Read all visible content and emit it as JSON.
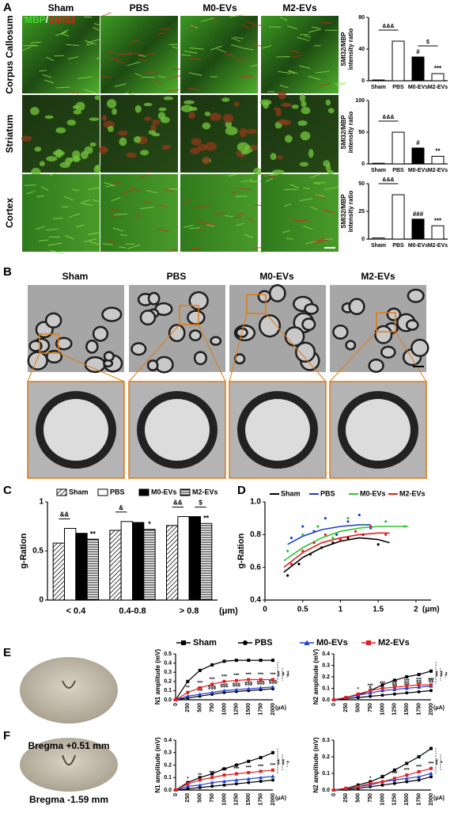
{
  "panels": [
    "A",
    "B",
    "C",
    "D",
    "E",
    "F"
  ],
  "panel_a": {
    "stain": {
      "mbp": "MBP",
      "sep": "/",
      "smi": "SMI32"
    },
    "columns": [
      "Sham",
      "PBS",
      "M0-EVs",
      "M2-EVs"
    ],
    "rows": [
      "Corpus Callosum",
      "Striatum",
      "Cortex"
    ]
  },
  "panel_b": {
    "columns": [
      "Sham",
      "PBS",
      "M0-EVs",
      "M2-EVs"
    ]
  },
  "panel_e": {
    "bregma": "Bregma +0.51 mm"
  },
  "panel_f": {
    "bregma": "Bregma -1.59 mm"
  },
  "chart_data": [
    {
      "type": "bar",
      "ylabel": [
        "SMI32/MBP",
        "intensity ratio"
      ],
      "categories": [
        "Sham",
        "PBS",
        "M0-EVs",
        "M2-EVs"
      ],
      "values": [
        1,
        50,
        30,
        9
      ],
      "colors": [
        "#ffffff",
        "#ffffff",
        "#000000",
        "#ffffff"
      ],
      "ylim": [
        0,
        80
      ],
      "yticks": [
        0,
        40,
        80
      ],
      "significance": [
        null,
        null,
        "#",
        "***"
      ],
      "brackets": [
        {
          "span": [
            "Sham",
            "PBS"
          ],
          "label": "&&&"
        },
        {
          "span": [
            "M0-EVs",
            "M2-EVs"
          ],
          "label": "$"
        }
      ]
    },
    {
      "type": "bar",
      "ylabel": [
        "SMI32/MBP",
        "intensity ratio"
      ],
      "categories": [
        "Sham",
        "PBS",
        "M0-EVs",
        "M2-EVs"
      ],
      "values": [
        1,
        50,
        25,
        12
      ],
      "colors": [
        "#ffffff",
        "#ffffff",
        "#000000",
        "#ffffff"
      ],
      "ylim": [
        0,
        100
      ],
      "yticks": [
        0,
        50,
        100
      ],
      "significance": [
        null,
        null,
        "#",
        "**"
      ],
      "brackets": [
        {
          "span": [
            "Sham",
            "PBS"
          ],
          "label": "&&&"
        }
      ]
    },
    {
      "type": "bar",
      "ylabel": [
        "SMI32/MBP",
        "intensity ratio"
      ],
      "categories": [
        "Sham",
        "PBS",
        "M0-EVs",
        "M2-EVs"
      ],
      "values": [
        1,
        40,
        18,
        12
      ],
      "colors": [
        "#ffffff",
        "#ffffff",
        "#000000",
        "#ffffff"
      ],
      "ylim": [
        0,
        50
      ],
      "yticks": [
        0,
        25,
        50
      ],
      "significance": [
        null,
        null,
        "###",
        "***"
      ],
      "brackets": [
        {
          "span": [
            "Sham",
            "PBS"
          ],
          "label": "&&&"
        }
      ]
    },
    {
      "type": "grouped_bar",
      "ylabel": "g-Ration",
      "x_unit": "(μm)",
      "categories": [
        "< 0.4",
        "0.4-0.8",
        "> 0.8"
      ],
      "ylim": [
        0,
        1
      ],
      "yticks": [
        0,
        0.5,
        1
      ],
      "series": [
        {
          "name": "Sham",
          "color": "#ffffff",
          "pattern": "diagonal",
          "values": [
            0.58,
            0.71,
            0.76
          ]
        },
        {
          "name": "PBS",
          "color": "#ffffff",
          "values": [
            0.73,
            0.8,
            0.85
          ]
        },
        {
          "name": "M0-EVs",
          "color": "#000000",
          "values": [
            0.68,
            0.79,
            0.85
          ]
        },
        {
          "name": "M2-EVs",
          "color": "#ffffff",
          "pattern": "horizontal",
          "values": [
            0.62,
            0.72,
            0.78
          ],
          "significance": [
            "**",
            "*",
            "**"
          ]
        }
      ],
      "brackets": [
        {
          "category": "< 0.4",
          "span": [
            "Sham",
            "PBS"
          ],
          "label": "&&"
        },
        {
          "category": "0.4-0.8",
          "span": [
            "Sham",
            "PBS"
          ],
          "label": "&"
        },
        {
          "category": "> 0.8",
          "span": [
            "Sham",
            "PBS"
          ],
          "label": "&&"
        },
        {
          "category": "> 0.8",
          "span": [
            "M0-EVs",
            "M2-EVs"
          ],
          "label": "$"
        }
      ]
    },
    {
      "type": "scatter",
      "ylabel": "g-Ration",
      "x_unit": "(μm)",
      "xlim": [
        0,
        2.2
      ],
      "xticks": [
        0,
        0.5,
        1,
        1.5,
        2
      ],
      "ylim": [
        0.4,
        1.0
      ],
      "yticks": [
        0.4,
        0.6,
        0.8,
        {
          "value": 1,
          "label": "1.0"
        }
      ],
      "series": [
        {
          "name": "Sham",
          "color": "#000000",
          "points": {
            "x": [
              0.3,
              0.45,
              0.6,
              0.75,
              0.9,
              1.1,
              1.3,
              1.5
            ],
            "y": [
              0.55,
              0.62,
              0.68,
              0.72,
              0.75,
              0.78,
              0.8,
              0.74
            ]
          },
          "fit": {
            "x": [
              0.25,
              0.5,
              0.75,
              1,
              1.25,
              1.5,
              1.65
            ],
            "y": [
              0.57,
              0.66,
              0.72,
              0.76,
              0.78,
              0.77,
              0.75
            ]
          }
        },
        {
          "name": "PBS",
          "color": "#1f3fd0",
          "points": {
            "x": [
              0.35,
              0.5,
              0.65,
              0.8,
              0.95,
              1.1,
              1.25,
              1.4
            ],
            "y": [
              0.78,
              0.85,
              0.82,
              0.9,
              0.8,
              0.88,
              0.92,
              0.84
            ]
          },
          "fit": {
            "x": [
              0.3,
              0.5,
              0.75,
              1,
              1.25,
              1.4
            ],
            "y": [
              0.74,
              0.79,
              0.83,
              0.85,
              0.86,
              0.86
            ]
          }
        },
        {
          "name": "M0-EVs",
          "color": "#2fc42f",
          "points": {
            "x": [
              0.3,
              0.5,
              0.7,
              0.9,
              1.1,
              1.3,
              1.6,
              1.85
            ],
            "y": [
              0.7,
              0.8,
              0.85,
              0.78,
              0.9,
              0.86,
              0.88,
              0.85
            ]
          },
          "fit": {
            "x": [
              0.25,
              0.5,
              0.75,
              1,
              1.25,
              1.5,
              1.75,
              1.9
            ],
            "y": [
              0.64,
              0.72,
              0.78,
              0.82,
              0.84,
              0.85,
              0.85,
              0.85
            ]
          }
        },
        {
          "name": "M2-EVs",
          "color": "#e02020",
          "points": {
            "x": [
              0.35,
              0.5,
              0.65,
              0.8,
              1.0,
              1.2,
              1.4,
              1.6
            ],
            "y": [
              0.62,
              0.7,
              0.75,
              0.8,
              0.77,
              0.82,
              0.85,
              0.8
            ]
          },
          "fit": {
            "x": [
              0.25,
              0.5,
              0.75,
              1,
              1.25,
              1.5,
              1.65
            ],
            "y": [
              0.6,
              0.69,
              0.75,
              0.78,
              0.8,
              0.81,
              0.81
            ]
          }
        }
      ]
    },
    {
      "type": "line",
      "ylabel": "N1 amplitude (mV)",
      "x_unit": "(μA)",
      "categories": [
        "0",
        "250",
        "500",
        "750",
        "1000",
        "1250",
        "1500",
        "1750",
        "2000"
      ],
      "ylim": [
        0,
        0.5
      ],
      "yticks": [
        {
          "value": 0,
          "label": "0.0"
        },
        0.1,
        0.2,
        0.3,
        0.4,
        0.5
      ],
      "side_labels": [
        "***",
        "**",
        "***"
      ],
      "series": [
        {
          "name": "Sham",
          "color": "#000000",
          "marker": "square",
          "values": [
            0,
            0.2,
            0.32,
            0.38,
            0.42,
            0.43,
            0.43,
            0.43,
            0.43
          ]
        },
        {
          "name": "PBS",
          "color": "#000000",
          "marker": "circle",
          "values": [
            0,
            0.02,
            0.04,
            0.06,
            0.08,
            0.09,
            0.1,
            0.11,
            0.12
          ]
        },
        {
          "name": "M0-EVs",
          "color": "#1f3fd0",
          "marker": "triangle",
          "values": [
            0,
            0.04,
            0.06,
            0.08,
            0.1,
            0.11,
            0.12,
            0.13,
            0.14
          ],
          "significance": [
            null,
            null,
            "$$",
            "$$$",
            "$$$",
            "$$$",
            "$$$",
            "$$$",
            "$$$"
          ]
        },
        {
          "name": "M2-EVs",
          "color": "#e02020",
          "marker": "square",
          "values": [
            0,
            0.08,
            0.13,
            0.17,
            0.2,
            0.21,
            0.22,
            0.22,
            0.22
          ],
          "significance": [
            null,
            "**",
            "***",
            "***",
            "***",
            "***",
            "***",
            "***",
            "***"
          ]
        }
      ]
    },
    {
      "type": "line",
      "ylabel": "N2 amplitude (mV)",
      "x_unit": "(μA)",
      "categories": [
        "0",
        "250",
        "500",
        "750",
        "1000",
        "1250",
        "1500",
        "1750",
        "2000"
      ],
      "ylim": [
        0,
        0.4
      ],
      "yticks": [
        {
          "value": 0,
          "label": "0.0"
        },
        0.1,
        0.2,
        0.3,
        0.4
      ],
      "side_labels": [
        "***",
        "***",
        "**"
      ],
      "series": [
        {
          "name": "Sham",
          "color": "#000000",
          "marker": "square",
          "values": [
            0,
            0.02,
            0.04,
            0.08,
            0.13,
            0.17,
            0.2,
            0.22,
            0.25
          ]
        },
        {
          "name": "PBS",
          "color": "#000000",
          "marker": "circle",
          "values": [
            0,
            0.01,
            0.02,
            0.03,
            0.04,
            0.05,
            0.06,
            0.07,
            0.08
          ]
        },
        {
          "name": "M0-EVs",
          "color": "#1f3fd0",
          "marker": "triangle",
          "values": [
            0,
            0.02,
            0.04,
            0.06,
            0.08,
            0.09,
            0.1,
            0.11,
            0.12
          ],
          "significance": [
            null,
            null,
            null,
            "$",
            "$",
            "$$",
            "$$",
            "$$",
            "$$"
          ]
        },
        {
          "name": "M2-EVs",
          "color": "#e02020",
          "marker": "square",
          "values": [
            0,
            0.02,
            0.05,
            0.08,
            0.1,
            0.11,
            0.12,
            0.13,
            0.13
          ],
          "significance": [
            null,
            null,
            "*",
            "***",
            "***",
            "***",
            "***",
            "***",
            "***"
          ]
        }
      ]
    },
    {
      "type": "line",
      "ylabel": "N1 amplitude (mV)",
      "x_unit": "(μA)",
      "categories": [
        "0",
        "250",
        "500",
        "750",
        "1000",
        "1250",
        "1500",
        "1750",
        "2000"
      ],
      "ylim": [
        0,
        0.4
      ],
      "yticks": [
        {
          "value": 0,
          "label": "0.0"
        },
        0.1,
        0.2,
        0.3,
        0.4
      ],
      "side_labels": [
        "***",
        "***",
        "*"
      ],
      "series": [
        {
          "name": "Sham",
          "color": "#000000",
          "marker": "square",
          "values": [
            0,
            0.06,
            0.1,
            0.13,
            0.17,
            0.2,
            0.23,
            0.26,
            0.3
          ]
        },
        {
          "name": "PBS",
          "color": "#000000",
          "marker": "circle",
          "values": [
            0,
            0.01,
            0.02,
            0.03,
            0.04,
            0.05,
            0.06,
            0.07,
            0.08
          ]
        },
        {
          "name": "M0-EVs",
          "color": "#1f3fd0",
          "marker": "triangle",
          "values": [
            0,
            0.03,
            0.04,
            0.06,
            0.07,
            0.08,
            0.09,
            0.1,
            0.11
          ]
        },
        {
          "name": "M2-EVs",
          "color": "#e02020",
          "marker": "square",
          "values": [
            0,
            0.05,
            0.08,
            0.1,
            0.12,
            0.13,
            0.14,
            0.15,
            0.16
          ],
          "significance": [
            null,
            "*",
            "**",
            "***",
            "***",
            "***",
            "***",
            "***",
            "***"
          ]
        }
      ]
    },
    {
      "type": "line",
      "ylabel": "N2 amplitude (mV)",
      "x_unit": "(μA)",
      "categories": [
        "0",
        "250",
        "500",
        "750",
        "1000",
        "1250",
        "1500",
        "1750",
        "2000"
      ],
      "ylim": [
        0,
        0.3
      ],
      "yticks": [
        {
          "value": 0,
          "label": "0.0"
        },
        0.1,
        0.2,
        0.3
      ],
      "side_labels": [
        "***",
        "*"
      ],
      "series": [
        {
          "name": "Sham",
          "color": "#000000",
          "marker": "square",
          "values": [
            0,
            0.01,
            0.03,
            0.05,
            0.08,
            0.12,
            0.16,
            0.2,
            0.25
          ]
        },
        {
          "name": "PBS",
          "color": "#000000",
          "marker": "circle",
          "values": [
            0,
            0.005,
            0.01,
            0.02,
            0.03,
            0.04,
            0.05,
            0.06,
            0.08
          ]
        },
        {
          "name": "M0-EVs",
          "color": "#1f3fd0",
          "marker": "triangle",
          "values": [
            0,
            0.01,
            0.02,
            0.03,
            0.05,
            0.06,
            0.07,
            0.08,
            0.1
          ]
        },
        {
          "name": "M2-EVs",
          "color": "#e02020",
          "marker": "square",
          "values": [
            0,
            0.01,
            0.02,
            0.04,
            0.05,
            0.07,
            0.09,
            0.11,
            0.13
          ],
          "significance": [
            null,
            null,
            null,
            "*",
            "**",
            "***",
            "***",
            "***",
            "***"
          ]
        }
      ]
    }
  ]
}
